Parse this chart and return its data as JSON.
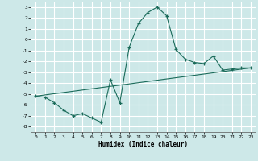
{
  "xlabel": "Humidex (Indice chaleur)",
  "background_color": "#cde8e8",
  "grid_color": "#ffffff",
  "line_color": "#1a6b5a",
  "xlim": [
    -0.5,
    23.5
  ],
  "ylim": [
    -8.5,
    3.5
  ],
  "yticks": [
    3,
    2,
    1,
    0,
    -1,
    -2,
    -3,
    -4,
    -5,
    -6,
    -7,
    -8
  ],
  "xticks": [
    0,
    1,
    2,
    3,
    4,
    5,
    6,
    7,
    8,
    9,
    10,
    11,
    12,
    13,
    14,
    15,
    16,
    17,
    18,
    19,
    20,
    21,
    22,
    23
  ],
  "line1_x": [
    0,
    1,
    2,
    3,
    4,
    5,
    6,
    7,
    8,
    9,
    10,
    11,
    12,
    13,
    14,
    15,
    16,
    17,
    18,
    19,
    20,
    21,
    22,
    23
  ],
  "line1_y": [
    -5.2,
    -5.3,
    -5.8,
    -6.5,
    -7.0,
    -6.8,
    -7.2,
    -7.6,
    -3.7,
    -5.8,
    -0.7,
    1.5,
    2.5,
    3.0,
    2.2,
    -0.9,
    -1.8,
    -2.1,
    -2.2,
    -1.5,
    -2.8,
    -2.7,
    -2.6,
    -2.6
  ],
  "line2_x": [
    0,
    23
  ],
  "line2_y": [
    -5.2,
    -2.6
  ]
}
